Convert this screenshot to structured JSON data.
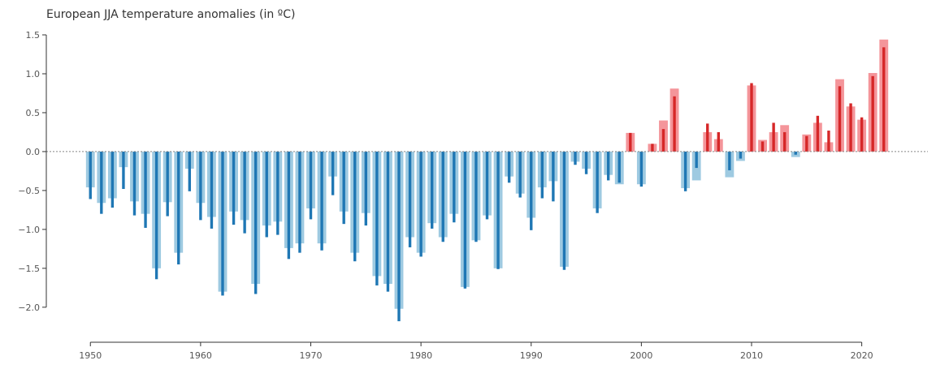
{
  "chart_data": {
    "type": "bar",
    "title": "European JJA temperature anomalies (in ºC)",
    "xlabel": "",
    "ylabel": "",
    "xlim": [
      1946,
      2026
    ],
    "ylim": [
      -2.45,
      1.5
    ],
    "x_ticks": [
      1950,
      1960,
      1970,
      1980,
      1990,
      2000,
      2010,
      2020
    ],
    "x_tick_labels": [
      "1950",
      "1960",
      "1970",
      "1980",
      "1990",
      "2000",
      "2010",
      "2020"
    ],
    "y_ticks": [
      -2.0,
      -1.5,
      -1.0,
      -0.5,
      0.0,
      0.5,
      1.0,
      1.5
    ],
    "y_tick_labels": [
      "−2.0",
      "−1.5",
      "−1.0",
      "−0.5",
      "0.0",
      "0.5",
      "1.0",
      "1.5"
    ],
    "grid": false,
    "legend": "none",
    "zero_line": true,
    "colors": {
      "negative_wide": "#9ecae1",
      "negative_narrow": "#1f77b4",
      "positive_wide": "#f4959a",
      "positive_narrow": "#d62728",
      "zero_line": "#888888"
    },
    "years": [
      1950,
      1951,
      1952,
      1953,
      1954,
      1955,
      1956,
      1957,
      1958,
      1959,
      1960,
      1961,
      1962,
      1963,
      1964,
      1965,
      1966,
      1967,
      1968,
      1969,
      1970,
      1971,
      1972,
      1973,
      1974,
      1975,
      1976,
      1977,
      1978,
      1979,
      1980,
      1981,
      1982,
      1983,
      1984,
      1985,
      1986,
      1987,
      1988,
      1989,
      1990,
      1991,
      1992,
      1993,
      1994,
      1995,
      1996,
      1997,
      1998,
      1999,
      2000,
      2001,
      2002,
      2003,
      2004,
      2005,
      2006,
      2007,
      2008,
      2009,
      2010,
      2011,
      2012,
      2013,
      2014,
      2015,
      2016,
      2017,
      2018,
      2019,
      2020,
      2021,
      2022
    ],
    "series": [
      {
        "style": "wide-light",
        "values": [
          -0.46,
          -0.66,
          -0.6,
          -0.2,
          -0.64,
          -0.8,
          -1.5,
          -0.65,
          -1.3,
          -0.22,
          -0.66,
          -0.84,
          -1.8,
          -0.77,
          -0.88,
          -1.7,
          -0.95,
          -0.9,
          -1.24,
          -1.18,
          -0.73,
          -1.18,
          -0.32,
          -0.77,
          -1.3,
          -0.79,
          -1.6,
          -1.7,
          -2.02,
          -1.1,
          -1.3,
          -0.92,
          -1.1,
          -0.8,
          -1.74,
          -1.14,
          -0.82,
          -1.5,
          -0.32,
          -0.54,
          -0.85,
          -0.46,
          -0.38,
          -1.48,
          -0.13,
          -0.22,
          -0.73,
          -0.3,
          -0.42,
          0.24,
          -0.42,
          0.1,
          0.4,
          0.81,
          -0.47,
          -0.37,
          0.25,
          0.16,
          -0.33,
          -0.12,
          0.85,
          0.15,
          0.25,
          0.34,
          -0.07,
          0.22,
          0.37,
          0.12,
          0.93,
          0.58,
          0.41,
          1.01,
          1.44
        ]
      },
      {
        "style": "narrow-dark",
        "values": [
          -0.61,
          -0.8,
          -0.72,
          -0.48,
          -0.82,
          -0.98,
          -1.64,
          -0.83,
          -1.45,
          -0.51,
          -0.88,
          -0.99,
          -1.85,
          -0.94,
          -1.05,
          -1.83,
          -1.1,
          -1.07,
          -1.38,
          -1.3,
          -0.87,
          -1.27,
          -0.56,
          -0.93,
          -1.41,
          -0.95,
          -1.72,
          -1.8,
          -2.18,
          -1.23,
          -1.35,
          -0.99,
          -1.16,
          -0.91,
          -1.76,
          -1.16,
          -0.87,
          -1.51,
          -0.4,
          -0.59,
          -1.01,
          -0.6,
          -0.64,
          -1.52,
          -0.17,
          -0.29,
          -0.79,
          -0.37,
          -0.4,
          0.24,
          -0.45,
          0.1,
          0.29,
          0.71,
          -0.51,
          -0.21,
          0.36,
          0.25,
          -0.24,
          -0.09,
          0.88,
          0.13,
          0.37,
          0.25,
          -0.04,
          0.2,
          0.46,
          0.27,
          0.84,
          0.62,
          0.44,
          0.97,
          1.34
        ]
      }
    ]
  }
}
